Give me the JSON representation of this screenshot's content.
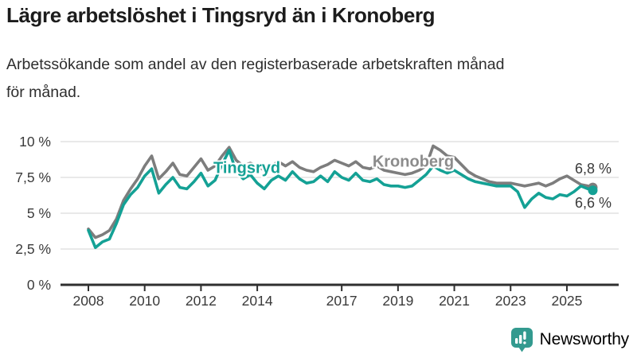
{
  "title": "Lägre arbetslöshet i Tingsryd än i Kronoberg",
  "subtitle_lines": [
    "Arbetssökande som andel av den registerbaserade arbetskraften månad",
    "för månad."
  ],
  "colors": {
    "tingsryd": "#14a195",
    "kronoberg": "#7d7d7d",
    "kronoberg_label": "#8c8c8c",
    "gridline": "#dcdcdc",
    "axis": "#2f2f2f",
    "text": "#3a3a3a",
    "logo": "#339a8f"
  },
  "chart_data": {
    "type": "line",
    "x_unit": "year (monthly series, quarterly sampled)",
    "x": [
      2008,
      2008.25,
      2008.5,
      2008.75,
      2009,
      2009.25,
      2009.5,
      2009.75,
      2010,
      2010.25,
      2010.5,
      2010.75,
      2011,
      2011.25,
      2011.5,
      2011.75,
      2012,
      2012.25,
      2012.5,
      2012.75,
      2013,
      2013.25,
      2013.5,
      2013.75,
      2014,
      2014.25,
      2014.5,
      2014.75,
      2015,
      2015.25,
      2015.5,
      2015.75,
      2016,
      2016.25,
      2016.5,
      2016.75,
      2017,
      2017.25,
      2017.5,
      2017.75,
      2018,
      2018.25,
      2018.5,
      2018.75,
      2019,
      2019.25,
      2019.5,
      2019.75,
      2020,
      2020.25,
      2020.5,
      2020.75,
      2021,
      2021.25,
      2021.5,
      2021.75,
      2022,
      2022.25,
      2022.5,
      2022.75,
      2023,
      2023.25,
      2023.5,
      2023.75,
      2024,
      2024.25,
      2024.5,
      2024.75,
      2025,
      2025.25,
      2025.5,
      2025.75,
      2025.92
    ],
    "series": [
      {
        "name": "Tingsryd",
        "color": "#14a195",
        "label_color": "#14a195",
        "end_label": "6,6 %",
        "end_value": 6.6,
        "label_at": {
          "x": 2013.63,
          "y": 8.1
        },
        "values": [
          3.8,
          2.6,
          3.0,
          3.2,
          4.3,
          5.6,
          6.3,
          6.8,
          7.6,
          8.1,
          6.4,
          7.0,
          7.5,
          6.8,
          6.7,
          7.2,
          7.8,
          6.9,
          7.3,
          8.4,
          9.4,
          7.9,
          7.4,
          7.7,
          7.1,
          6.7,
          7.3,
          7.6,
          7.3,
          7.9,
          7.4,
          7.1,
          7.2,
          7.6,
          7.2,
          7.9,
          7.5,
          7.3,
          7.8,
          7.3,
          7.2,
          7.4,
          7.0,
          6.9,
          6.9,
          6.8,
          6.9,
          7.3,
          7.7,
          8.3,
          8.0,
          7.8,
          8.0,
          7.7,
          7.4,
          7.2,
          7.1,
          7.0,
          6.9,
          6.9,
          6.9,
          6.5,
          5.4,
          6.0,
          6.4,
          6.1,
          6.0,
          6.3,
          6.2,
          6.5,
          6.9,
          6.7,
          6.6
        ]
      },
      {
        "name": "Kronoberg",
        "color": "#7d7d7d",
        "label_color": "#8c8c8c",
        "end_label": "6,8 %",
        "end_value": 6.8,
        "label_at": {
          "x": 2019.54,
          "y": 8.55
        },
        "values": [
          3.9,
          3.3,
          3.5,
          3.8,
          4.6,
          5.9,
          6.7,
          7.4,
          8.3,
          9.0,
          7.4,
          7.9,
          8.5,
          7.7,
          7.6,
          8.2,
          8.8,
          8.0,
          8.3,
          9.0,
          9.6,
          8.7,
          8.3,
          8.5,
          8.3,
          8.0,
          8.3,
          8.6,
          8.3,
          8.6,
          8.2,
          8.0,
          7.9,
          8.2,
          8.4,
          8.7,
          8.5,
          8.3,
          8.6,
          8.2,
          8.1,
          8.3,
          8.0,
          7.9,
          7.8,
          7.7,
          7.8,
          8.0,
          8.3,
          9.7,
          9.4,
          9.0,
          8.9,
          8.4,
          7.9,
          7.6,
          7.4,
          7.2,
          7.1,
          7.1,
          7.1,
          7.0,
          6.9,
          7.0,
          7.1,
          6.9,
          7.1,
          7.4,
          7.6,
          7.3,
          7.0,
          6.9,
          6.8
        ]
      }
    ],
    "ylim": [
      0,
      10.5
    ],
    "y_ticks": [
      {
        "value": 0,
        "label": "0 %"
      },
      {
        "value": 2.5,
        "label": "2,5 %"
      },
      {
        "value": 5,
        "label": "5 %"
      },
      {
        "value": 7.5,
        "label": "7,5 %"
      },
      {
        "value": 10,
        "label": "10 %"
      }
    ],
    "x_ticks": [
      {
        "value": 2008,
        "label": "2008"
      },
      {
        "value": 2010,
        "label": "2010"
      },
      {
        "value": 2012,
        "label": "2012"
      },
      {
        "value": 2014,
        "label": "2014"
      },
      {
        "value": 2017,
        "label": "2017"
      },
      {
        "value": 2019,
        "label": "2019"
      },
      {
        "value": 2021,
        "label": "2021"
      },
      {
        "value": 2023,
        "label": "2023"
      },
      {
        "value": 2025,
        "label": "2025"
      }
    ],
    "grid": true,
    "legend_position": "inline-labels"
  },
  "footer": {
    "brand": "Newsworthy"
  }
}
